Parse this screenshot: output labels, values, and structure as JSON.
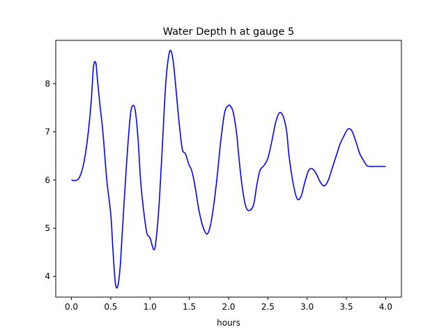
{
  "chart_data": {
    "type": "line",
    "title": "Water Depth h at gauge 5",
    "xlabel": "hours",
    "ylabel": "",
    "xlim": [
      -0.2,
      4.2
    ],
    "ylim": [
      3.57,
      8.9
    ],
    "xticks": [
      0.0,
      0.5,
      1.0,
      1.5,
      2.0,
      2.5,
      3.0,
      3.5,
      4.0
    ],
    "xtick_labels": [
      "0.0",
      "0.5",
      "1.0",
      "1.5",
      "2.0",
      "2.5",
      "3.0",
      "3.5",
      "4.0"
    ],
    "yticks": [
      4,
      5,
      6,
      7,
      8
    ],
    "ytick_labels": [
      "4",
      "5",
      "6",
      "7",
      "8"
    ],
    "grid": false,
    "series": [
      {
        "color": "#0000ff",
        "x": [
          0.0,
          0.05,
          0.1,
          0.15,
          0.2,
          0.25,
          0.28,
          0.31,
          0.33,
          0.36,
          0.4,
          0.45,
          0.5,
          0.53,
          0.56,
          0.59,
          0.62,
          0.65,
          0.7,
          0.75,
          0.79,
          0.82,
          0.85,
          0.88,
          0.92,
          0.96,
          1.0,
          1.05,
          1.08,
          1.12,
          1.16,
          1.2,
          1.24,
          1.27,
          1.3,
          1.33,
          1.37,
          1.41,
          1.45,
          1.48,
          1.5,
          1.53,
          1.57,
          1.62,
          1.67,
          1.72,
          1.76,
          1.8,
          1.85,
          1.9,
          1.95,
          2.0,
          2.03,
          2.06,
          2.1,
          2.13,
          2.17,
          2.22,
          2.27,
          2.32,
          2.36,
          2.4,
          2.45,
          2.5,
          2.55,
          2.6,
          2.65,
          2.7,
          2.74,
          2.77,
          2.82,
          2.87,
          2.92,
          2.97,
          3.02,
          3.07,
          3.12,
          3.17,
          3.22,
          3.27,
          3.32,
          3.37,
          3.42,
          3.47,
          3.52,
          3.57,
          3.62,
          3.67,
          3.72,
          3.76,
          3.8,
          3.85,
          3.9,
          3.95,
          4.0
        ],
        "y": [
          6.0,
          5.99,
          6.05,
          6.3,
          6.8,
          7.6,
          8.35,
          8.43,
          8.1,
          7.6,
          7.0,
          6.0,
          5.3,
          4.5,
          3.85,
          3.8,
          4.2,
          5.0,
          6.3,
          7.35,
          7.55,
          7.35,
          6.8,
          6.0,
          5.35,
          4.9,
          4.8,
          4.55,
          4.8,
          5.6,
          6.8,
          8.0,
          8.6,
          8.67,
          8.4,
          7.9,
          7.2,
          6.65,
          6.55,
          6.4,
          6.3,
          6.2,
          5.9,
          5.4,
          5.05,
          4.88,
          5.0,
          5.35,
          6.0,
          6.8,
          7.4,
          7.55,
          7.52,
          7.4,
          7.0,
          6.5,
          5.9,
          5.45,
          5.37,
          5.5,
          5.9,
          6.2,
          6.3,
          6.45,
          6.8,
          7.2,
          7.4,
          7.3,
          7.0,
          6.5,
          5.95,
          5.62,
          5.65,
          5.95,
          6.2,
          6.23,
          6.12,
          5.95,
          5.88,
          6.0,
          6.25,
          6.5,
          6.75,
          6.92,
          7.06,
          7.02,
          6.8,
          6.55,
          6.4,
          6.3,
          6.28,
          6.28,
          6.28,
          6.28,
          6.28
        ]
      }
    ]
  }
}
